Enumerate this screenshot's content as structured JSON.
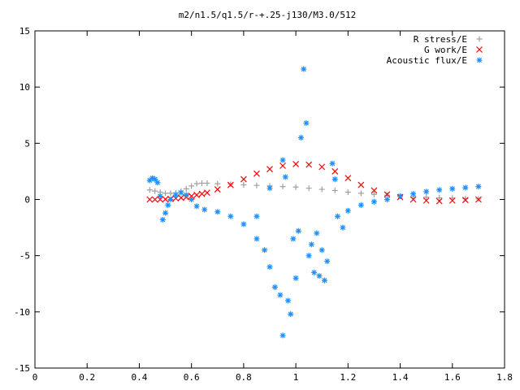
{
  "chart_data": {
    "type": "scatter",
    "title": "m2/n1.5/q1.5/r-+.25-j130/M3.0/512",
    "xlabel": "",
    "ylabel": "",
    "xlim": [
      0,
      1.8
    ],
    "ylim": [
      -15,
      15
    ],
    "xticks": [
      "0",
      "0.2",
      "0.4",
      "0.6",
      "0.8",
      "1",
      "1.2",
      "1.4",
      "1.6",
      "1.8"
    ],
    "yticks": [
      "-15",
      "-10",
      "-5",
      "0",
      "5",
      "10",
      "15"
    ],
    "grid": false,
    "legend_position": "top-right",
    "series": [
      {
        "name": "R stress/E",
        "marker": "+",
        "color": "#a0a0a0",
        "points": [
          [
            0.44,
            0.85
          ],
          [
            0.46,
            0.75
          ],
          [
            0.48,
            0.65
          ],
          [
            0.5,
            0.55
          ],
          [
            0.52,
            0.55
          ],
          [
            0.54,
            0.6
          ],
          [
            0.56,
            0.75
          ],
          [
            0.58,
            0.95
          ],
          [
            0.6,
            1.2
          ],
          [
            0.62,
            1.4
          ],
          [
            0.64,
            1.45
          ],
          [
            0.66,
            1.45
          ],
          [
            0.7,
            1.4
          ],
          [
            0.75,
            1.35
          ],
          [
            0.8,
            1.3
          ],
          [
            0.85,
            1.25
          ],
          [
            0.9,
            1.2
          ],
          [
            0.95,
            1.15
          ],
          [
            1.0,
            1.1
          ],
          [
            1.05,
            1.0
          ],
          [
            1.1,
            0.9
          ],
          [
            1.15,
            0.8
          ],
          [
            1.2,
            0.65
          ],
          [
            1.25,
            0.55
          ],
          [
            1.3,
            0.45
          ],
          [
            1.35,
            0.38
          ],
          [
            1.4,
            0.3
          ],
          [
            1.45,
            0.25
          ],
          [
            1.5,
            0.2
          ],
          [
            1.55,
            0.15
          ],
          [
            1.6,
            0.12
          ],
          [
            1.65,
            0.08
          ],
          [
            1.7,
            0.05
          ]
        ]
      },
      {
        "name": "G work/E",
        "marker": "x",
        "color": "#ff0000",
        "points": [
          [
            0.44,
            0.0
          ],
          [
            0.46,
            0.0
          ],
          [
            0.48,
            0.0
          ],
          [
            0.5,
            0.02
          ],
          [
            0.52,
            0.05
          ],
          [
            0.54,
            0.1
          ],
          [
            0.56,
            0.15
          ],
          [
            0.58,
            0.2
          ],
          [
            0.6,
            0.3
          ],
          [
            0.62,
            0.4
          ],
          [
            0.64,
            0.5
          ],
          [
            0.66,
            0.6
          ],
          [
            0.7,
            0.9
          ],
          [
            0.75,
            1.3
          ],
          [
            0.8,
            1.8
          ],
          [
            0.85,
            2.3
          ],
          [
            0.9,
            2.7
          ],
          [
            0.95,
            3.0
          ],
          [
            1.0,
            3.15
          ],
          [
            1.05,
            3.1
          ],
          [
            1.1,
            2.9
          ],
          [
            1.15,
            2.5
          ],
          [
            1.2,
            1.9
          ],
          [
            1.25,
            1.3
          ],
          [
            1.3,
            0.8
          ],
          [
            1.35,
            0.45
          ],
          [
            1.4,
            0.2
          ],
          [
            1.45,
            0.0
          ],
          [
            1.5,
            -0.1
          ],
          [
            1.55,
            -0.15
          ],
          [
            1.6,
            -0.1
          ],
          [
            1.65,
            -0.05
          ],
          [
            1.7,
            0.0
          ]
        ]
      },
      {
        "name": "Acoustic flux/E",
        "marker": "*",
        "color": "#1e90ff",
        "points": [
          [
            0.44,
            1.7
          ],
          [
            0.45,
            1.9
          ],
          [
            0.46,
            1.8
          ],
          [
            0.47,
            1.5
          ],
          [
            0.48,
            0.3
          ],
          [
            0.49,
            -1.8
          ],
          [
            0.5,
            -1.2
          ],
          [
            0.51,
            -0.5
          ],
          [
            0.52,
            0.0
          ],
          [
            0.54,
            0.4
          ],
          [
            0.56,
            0.6
          ],
          [
            0.58,
            0.4
          ],
          [
            0.6,
            0.0
          ],
          [
            0.62,
            -0.6
          ],
          [
            0.65,
            -0.9
          ],
          [
            0.7,
            -1.1
          ],
          [
            0.75,
            -1.5
          ],
          [
            0.8,
            -2.2
          ],
          [
            0.85,
            -3.5
          ],
          [
            0.88,
            -4.5
          ],
          [
            0.9,
            -6.0
          ],
          [
            0.92,
            -7.8
          ],
          [
            0.94,
            -8.5
          ],
          [
            0.95,
            -12.1
          ],
          [
            0.97,
            -9.0
          ],
          [
            0.98,
            -10.2
          ],
          [
            1.0,
            -7.0
          ],
          [
            1.02,
            5.5
          ],
          [
            1.03,
            11.6
          ],
          [
            1.04,
            6.8
          ],
          [
            1.05,
            -5.0
          ],
          [
            1.06,
            -4.0
          ],
          [
            1.08,
            -3.0
          ],
          [
            1.1,
            -4.5
          ],
          [
            1.12,
            -5.5
          ],
          [
            1.14,
            3.2
          ],
          [
            1.15,
            1.8
          ],
          [
            1.16,
            -1.5
          ],
          [
            1.18,
            -2.5
          ],
          [
            1.2,
            -1.0
          ],
          [
            1.25,
            -0.5
          ],
          [
            1.3,
            -0.2
          ],
          [
            1.35,
            0.0
          ],
          [
            1.4,
            0.3
          ],
          [
            1.45,
            0.5
          ],
          [
            1.5,
            0.7
          ],
          [
            1.55,
            0.85
          ],
          [
            1.6,
            0.95
          ],
          [
            1.65,
            1.05
          ],
          [
            1.7,
            1.15
          ],
          [
            0.85,
            -1.5
          ],
          [
            0.9,
            1.0
          ],
          [
            0.95,
            3.5
          ],
          [
            0.96,
            2.0
          ],
          [
            0.99,
            -3.5
          ],
          [
            1.01,
            -2.8
          ],
          [
            1.07,
            -6.5
          ],
          [
            1.09,
            -6.8
          ],
          [
            1.11,
            -7.2
          ]
        ]
      }
    ]
  }
}
